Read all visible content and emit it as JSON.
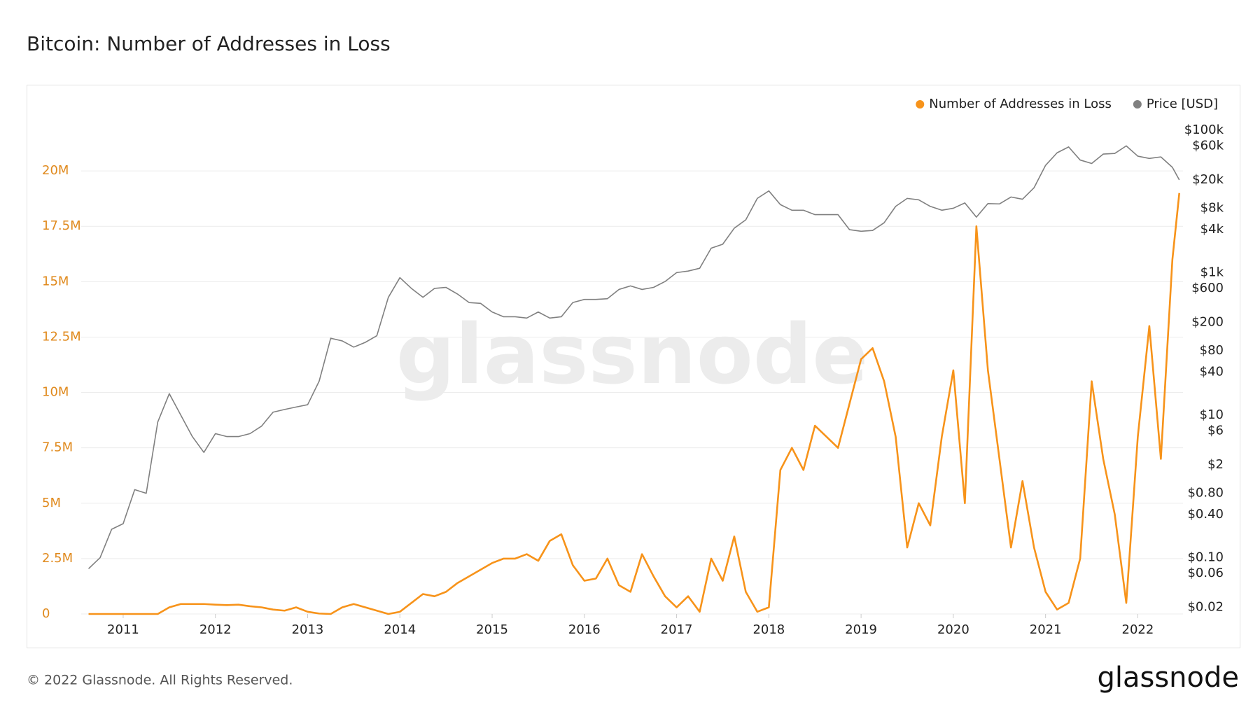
{
  "chart_data": {
    "type": "line",
    "title": "Bitcoin: Number of Addresses in Loss",
    "watermark": "glassnode",
    "source": "© 2022 Glassnode. All Rights Reserved.",
    "logo": "glassnode",
    "legend": "top-right",
    "grid": true,
    "y2log": true,
    "xlim": [
      2010.545,
      2022.49
    ],
    "xticks": [
      2011,
      2012,
      2013,
      2014,
      2015,
      2016,
      2017,
      2018,
      2019,
      2020,
      2021,
      2022
    ],
    "ylim": [
      0,
      22500000
    ],
    "yticks": [
      0,
      {
        "value": 2500000,
        "label": "2.5M"
      },
      {
        "value": 5000000,
        "label": "5M"
      },
      {
        "value": 7500000,
        "label": "7.5M"
      },
      {
        "value": 10000000,
        "label": "10M"
      },
      {
        "value": 12500000,
        "label": "12.5M"
      },
      {
        "value": 15000000,
        "label": "15M"
      },
      {
        "value": 17500000,
        "label": "17.5M"
      },
      {
        "value": 20000000,
        "label": "20M"
      }
    ],
    "y2lim": [
      0.0162,
      160000
    ],
    "y2ticks": [
      {
        "value": 100000,
        "label": "$100k"
      },
      {
        "value": 60000,
        "label": "$60k"
      },
      {
        "value": 20000,
        "label": "$20k"
      },
      {
        "value": 8000,
        "label": "$8k"
      },
      {
        "value": 4000,
        "label": "$4k"
      },
      {
        "value": 1000,
        "label": "$1k"
      },
      {
        "value": 600,
        "label": "$600"
      },
      {
        "value": 200,
        "label": "$200"
      },
      {
        "value": 80,
        "label": "$80"
      },
      {
        "value": 40,
        "label": "$40"
      },
      {
        "value": 10,
        "label": "$10"
      },
      {
        "value": 6,
        "label": "$6"
      },
      {
        "value": 2,
        "label": "$2"
      },
      {
        "value": 0.8,
        "label": "$0.80"
      },
      {
        "value": 0.4,
        "label": "$0.40"
      },
      {
        "value": 0.1,
        "label": "$0.10"
      },
      {
        "value": 0.06,
        "label": "$0.06"
      },
      {
        "value": 0.02,
        "label": "$0.02"
      }
    ],
    "x": [
      2010.625,
      2010.75,
      2010.875,
      2011,
      2011.125,
      2011.25,
      2011.375,
      2011.5,
      2011.625,
      2011.75,
      2011.875,
      2012,
      2012.125,
      2012.25,
      2012.375,
      2012.5,
      2012.625,
      2012.75,
      2012.875,
      2013,
      2013.125,
      2013.25,
      2013.375,
      2013.5,
      2013.625,
      2013.75,
      2013.875,
      2014,
      2014.125,
      2014.25,
      2014.375,
      2014.5,
      2014.625,
      2014.75,
      2014.875,
      2015,
      2015.125,
      2015.25,
      2015.375,
      2015.5,
      2015.625,
      2015.75,
      2015.875,
      2016,
      2016.125,
      2016.25,
      2016.375,
      2016.5,
      2016.625,
      2016.75,
      2016.875,
      2017,
      2017.125,
      2017.25,
      2017.375,
      2017.5,
      2017.625,
      2017.75,
      2017.875,
      2018,
      2018.125,
      2018.25,
      2018.375,
      2018.5,
      2018.625,
      2018.75,
      2018.875,
      2019,
      2019.125,
      2019.25,
      2019.375,
      2019.5,
      2019.625,
      2019.75,
      2019.875,
      2020,
      2020.125,
      2020.25,
      2020.375,
      2020.5,
      2020.625,
      2020.75,
      2020.875,
      2021,
      2021.125,
      2021.25,
      2021.375,
      2021.5,
      2021.625,
      2021.75,
      2021.875,
      2022,
      2022.125,
      2022.25,
      2022.375,
      2022.45
    ],
    "series": [
      {
        "name": "Number of Addresses in Loss",
        "color": "#f7931a",
        "axis": "y",
        "values": [
          0,
          0,
          0,
          0,
          0,
          0,
          0,
          300000,
          450000,
          450000,
          450000,
          420000,
          400000,
          420000,
          350000,
          300000,
          200000,
          150000,
          300000,
          100000,
          20000,
          0,
          300000,
          450000,
          300000,
          150000,
          0,
          100000,
          500000,
          900000,
          800000,
          1000000,
          1400000,
          1700000,
          2000000,
          2300000,
          2500000,
          2500000,
          2700000,
          2400000,
          3300000,
          3600000,
          2200000,
          1500000,
          1600000,
          2500000,
          1300000,
          1000000,
          2700000,
          1700000,
          800000,
          300000,
          800000,
          100000,
          2500000,
          1500000,
          3500000,
          1000000,
          100000,
          300000,
          6500000,
          7500000,
          6500000,
          8500000,
          8000000,
          7500000,
          9500000,
          11500000,
          12000000,
          10500000,
          8000000,
          3000000,
          5000000,
          4000000,
          8000000,
          11000000,
          5000000,
          17500000,
          11000000,
          7000000,
          3000000,
          6000000,
          3000000,
          1000000,
          200000,
          500000,
          2500000,
          10500000,
          7000000,
          4500000,
          500000,
          8000000,
          13000000,
          7000000,
          16000000,
          19000000
        ]
      },
      {
        "name": "Price [USD]",
        "color": "#808080",
        "axis": "y2",
        "values": [
          0.07,
          0.1,
          0.25,
          0.3,
          0.9,
          0.8,
          8,
          20,
          10,
          5,
          3,
          5.5,
          5,
          5,
          5.5,
          7,
          11,
          12,
          13,
          14,
          30,
          120,
          110,
          90,
          105,
          130,
          450,
          850,
          600,
          450,
          600,
          620,
          500,
          380,
          370,
          280,
          240,
          240,
          230,
          280,
          230,
          240,
          380,
          420,
          420,
          430,
          580,
          650,
          580,
          620,
          750,
          1000,
          1050,
          1150,
          2200,
          2500,
          4200,
          5500,
          11000,
          14000,
          9000,
          7500,
          7500,
          6500,
          6500,
          6500,
          4000,
          3800,
          3900,
          5000,
          8500,
          11000,
          10500,
          8500,
          7500,
          8000,
          9500,
          6000,
          9300,
          9200,
          11500,
          10700,
          15500,
          32000,
          48000,
          58000,
          38000,
          34000,
          46000,
          47000,
          60000,
          43000,
          40000,
          42000,
          30000,
          20000
        ]
      }
    ]
  }
}
